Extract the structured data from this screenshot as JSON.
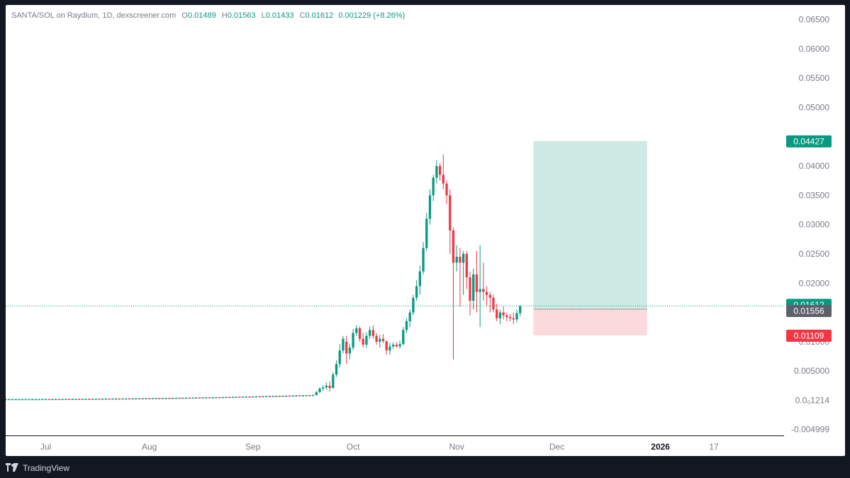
{
  "legend": {
    "symbol": "SANTA/SOL on Raydium, 1D, dexscreener.com",
    "open_label": "O",
    "open": "0.01489",
    "high_label": "H",
    "high": "0.01563",
    "low_label": "L",
    "low": "0.01433",
    "close_label": "C",
    "close": "0.01612",
    "change": "0.001229 (+8.26%)"
  },
  "price_axis": {
    "ticks": [
      {
        "value": 0.065,
        "label": "0.06500"
      },
      {
        "value": 0.06,
        "label": "0.06000"
      },
      {
        "value": 0.055,
        "label": "0.05500"
      },
      {
        "value": 0.05,
        "label": "0.05000"
      },
      {
        "value": 0.04,
        "label": "0.04000"
      },
      {
        "value": 0.035,
        "label": "0.03500"
      },
      {
        "value": 0.03,
        "label": "0.03000"
      },
      {
        "value": 0.025,
        "label": "0.02500"
      },
      {
        "value": 0.02,
        "label": "0.02000"
      },
      {
        "value": 0.01,
        "label": "0.01000"
      },
      {
        "value": 0.005,
        "label": "0.005000"
      },
      {
        "value": 0.0,
        "label": "0.0₀1214"
      },
      {
        "value": -0.005,
        "label": "-0.004999"
      }
    ]
  },
  "time_axis": {
    "labels": [
      {
        "day": 0,
        "label": "Jul"
      },
      {
        "day": 31,
        "label": "Aug"
      },
      {
        "day": 62,
        "label": "Sep"
      },
      {
        "day": 92,
        "label": "Oct"
      },
      {
        "day": 123,
        "label": "Nov"
      },
      {
        "day": 153,
        "label": "Dec"
      },
      {
        "day": 184,
        "label": "2026",
        "bold": true
      },
      {
        "day": 200,
        "label": "17"
      }
    ]
  },
  "price_badges": {
    "target": {
      "value": 0.04427,
      "label": "0.04427",
      "color": "#089981"
    },
    "last": {
      "value": 0.01612,
      "label": "0.01612",
      "color": "#089981"
    },
    "entry": {
      "value": 0.01556,
      "label": "0.01556",
      "color": "#5d606b"
    },
    "stop": {
      "value": 0.01109,
      "label": "0.01109",
      "color": "#f23645"
    }
  },
  "position_tool": {
    "type": "long",
    "entry": 0.01556,
    "target": 0.04427,
    "stop": 0.01109,
    "start_day": 146,
    "end_day": 180,
    "profit_color": "#cfeae4",
    "loss_color": "#fbd9dc"
  },
  "colors": {
    "up": "#089981",
    "down": "#f23645"
  },
  "chart_data": {
    "type": "candlestick",
    "ylim": [
      -0.006,
      0.0675
    ],
    "xlim_days": [
      -12,
      221
    ],
    "last_price": 0.01612,
    "candles": [
      [
        87,
        0.0044,
        0.0068,
        0.004,
        0.0062
      ],
      [
        88,
        0.0062,
        0.0096,
        0.0056,
        0.0085
      ],
      [
        89,
        0.0085,
        0.011,
        0.008,
        0.0105
      ],
      [
        90,
        0.01,
        0.011,
        0.0062,
        0.008
      ],
      [
        91,
        0.008,
        0.0096,
        0.007,
        0.009
      ],
      [
        92,
        0.009,
        0.0122,
        0.0085,
        0.0115
      ],
      [
        93,
        0.0115,
        0.0128,
        0.011,
        0.0123
      ],
      [
        94,
        0.0123,
        0.0126,
        0.01,
        0.0105
      ],
      [
        95,
        0.0105,
        0.0115,
        0.009,
        0.0095
      ],
      [
        96,
        0.0095,
        0.0116,
        0.009,
        0.011
      ],
      [
        97,
        0.011,
        0.0126,
        0.0105,
        0.012
      ],
      [
        98,
        0.012,
        0.0128,
        0.0105,
        0.011
      ],
      [
        99,
        0.011,
        0.0115,
        0.0095,
        0.01
      ],
      [
        100,
        0.01,
        0.0112,
        0.009,
        0.0105
      ],
      [
        101,
        0.0105,
        0.0113,
        0.0098,
        0.0101
      ],
      [
        102,
        0.0101,
        0.0102,
        0.0078,
        0.0085
      ],
      [
        103,
        0.0085,
        0.0098,
        0.0078,
        0.0092
      ],
      [
        104,
        0.0092,
        0.0099,
        0.0088,
        0.0095
      ],
      [
        105,
        0.0095,
        0.0099,
        0.009,
        0.0092
      ],
      [
        106,
        0.0092,
        0.0102,
        0.0088,
        0.0096
      ],
      [
        107,
        0.0096,
        0.0125,
        0.0094,
        0.012
      ],
      [
        108,
        0.012,
        0.014,
        0.0115,
        0.0135
      ],
      [
        109,
        0.0135,
        0.0155,
        0.0125,
        0.015
      ],
      [
        110,
        0.015,
        0.018,
        0.0145,
        0.0175
      ],
      [
        111,
        0.0175,
        0.0205,
        0.017,
        0.0195
      ],
      [
        112,
        0.0195,
        0.023,
        0.018,
        0.022
      ],
      [
        113,
        0.022,
        0.027,
        0.0215,
        0.026
      ],
      [
        114,
        0.026,
        0.032,
        0.0255,
        0.031
      ],
      [
        115,
        0.031,
        0.036,
        0.03,
        0.035
      ],
      [
        116,
        0.035,
        0.0385,
        0.034,
        0.038
      ],
      [
        117,
        0.038,
        0.041,
        0.037,
        0.04
      ],
      [
        118,
        0.04,
        0.0405,
        0.0375,
        0.0385
      ],
      [
        119,
        0.0385,
        0.042,
        0.036,
        0.037
      ],
      [
        120,
        0.037,
        0.0375,
        0.0335,
        0.035
      ],
      [
        121,
        0.035,
        0.036,
        0.025,
        0.029
      ],
      [
        122,
        0.029,
        0.0295,
        0.007,
        0.0235
      ],
      [
        123,
        0.0235,
        0.0265,
        0.022,
        0.0245
      ],
      [
        124,
        0.0245,
        0.026,
        0.016,
        0.0235
      ],
      [
        125,
        0.0235,
        0.0255,
        0.018,
        0.025
      ],
      [
        126,
        0.025,
        0.0255,
        0.019,
        0.021
      ],
      [
        127,
        0.021,
        0.022,
        0.0145,
        0.017
      ],
      [
        128,
        0.017,
        0.0225,
        0.0155,
        0.0215
      ],
      [
        129,
        0.0215,
        0.0255,
        0.015,
        0.0185
      ],
      [
        130,
        0.0185,
        0.0265,
        0.0125,
        0.019
      ],
      [
        131,
        0.019,
        0.0235,
        0.017,
        0.0185
      ],
      [
        132,
        0.0185,
        0.0195,
        0.016,
        0.018
      ],
      [
        133,
        0.018,
        0.0185,
        0.015,
        0.0175
      ],
      [
        134,
        0.0175,
        0.018,
        0.015,
        0.0155
      ],
      [
        135,
        0.0155,
        0.0165,
        0.0135,
        0.014
      ],
      [
        136,
        0.014,
        0.0155,
        0.013,
        0.015
      ],
      [
        137,
        0.015,
        0.016,
        0.0138,
        0.0145
      ],
      [
        138,
        0.0145,
        0.015,
        0.0135,
        0.0142
      ],
      [
        139,
        0.0142,
        0.0148,
        0.0135,
        0.014
      ],
      [
        140,
        0.014,
        0.015,
        0.013,
        0.0138
      ],
      [
        141,
        0.0138,
        0.0155,
        0.0133,
        0.01489
      ],
      [
        142,
        0.01489,
        0.01563,
        0.01433,
        0.01612
      ]
    ],
    "flat_period": {
      "start_day": -12,
      "end_day": 80,
      "value_start": 0.0001,
      "value_end": 0.0008
    }
  }
}
